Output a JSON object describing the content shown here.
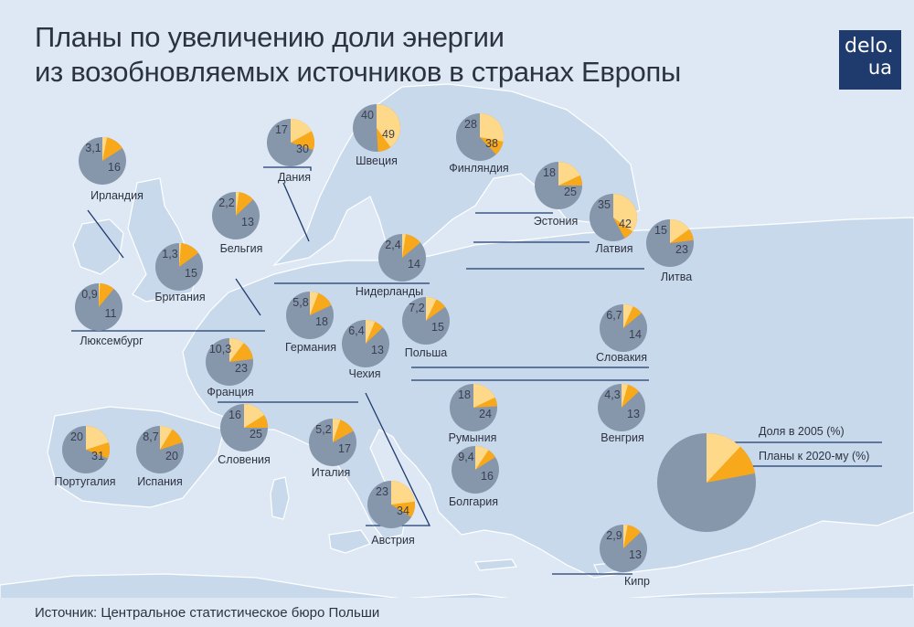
{
  "title": {
    "line1": "Планы по увеличению доли энергии",
    "line2": "из возобновляемых источников в странах Европы"
  },
  "logo": {
    "line1": "delo.",
    "line2": "ua"
  },
  "source": "Источник: Центральное статистическое бюро Польши",
  "legend": {
    "share_2005": "Доля в 2005 (%)",
    "plan_2020": "Планы к 2020-му (%)"
  },
  "colors": {
    "sea": "#dde8f4",
    "land": "#c9d9ec",
    "border": "#ffffff",
    "pie_base": "#8696ab",
    "share_2005": "#ffd98a",
    "plan_2020": "#f7a81b",
    "value_text": "#3a3f4f",
    "leader_line": "#1f3a6d",
    "logo_bg": "#1f3a6d"
  },
  "countries": [
    {
      "name": "Ирландия",
      "v2005": "3,1",
      "v2020": "16"
    },
    {
      "name": "Дания",
      "v2005": "17",
      "v2020": "30"
    },
    {
      "name": "Швеция",
      "v2005": "40",
      "v2020": "49"
    },
    {
      "name": "Финляндия",
      "v2005": "28",
      "v2020": "38"
    },
    {
      "name": "Бельгия",
      "v2005": "2,2",
      "v2020": "13"
    },
    {
      "name": "Эстония",
      "v2005": "18",
      "v2020": "25"
    },
    {
      "name": "Латвия",
      "v2005": "35",
      "v2020": "42"
    },
    {
      "name": "Литва",
      "v2005": "15",
      "v2020": "23"
    },
    {
      "name": "Нидерланды",
      "v2005": "2,4",
      "v2020": "14"
    },
    {
      "name": "Британия",
      "v2005": "1,3",
      "v2020": "15"
    },
    {
      "name": "Люксембург",
      "v2005": "0,9",
      "v2020": "11"
    },
    {
      "name": "Германия",
      "v2005": "5,8",
      "v2020": "18"
    },
    {
      "name": "Польша",
      "v2005": "7,2",
      "v2020": "15"
    },
    {
      "name": "Чехия",
      "v2005": "6,4",
      "v2020": "13"
    },
    {
      "name": "Словакия",
      "v2005": "6,7",
      "v2020": "14"
    },
    {
      "name": "Франция",
      "v2005": "10,3",
      "v2020": "23"
    },
    {
      "name": "Румыния",
      "v2005": "18",
      "v2020": "24"
    },
    {
      "name": "Венгрия",
      "v2005": "4,3",
      "v2020": "13"
    },
    {
      "name": "Словения",
      "v2005": "16",
      "v2020": "25"
    },
    {
      "name": "Италия",
      "v2005": "5,2",
      "v2020": "17"
    },
    {
      "name": "Португалия",
      "v2005": "20",
      "v2020": "31"
    },
    {
      "name": "Испания",
      "v2005": "8,7",
      "v2020": "20"
    },
    {
      "name": "Болгария",
      "v2005": "9,4",
      "v2020": "16"
    },
    {
      "name": "Австрия",
      "v2005": "23",
      "v2020": "34"
    },
    {
      "name": "Кипр",
      "v2005": "2,9",
      "v2020": "13"
    }
  ]
}
